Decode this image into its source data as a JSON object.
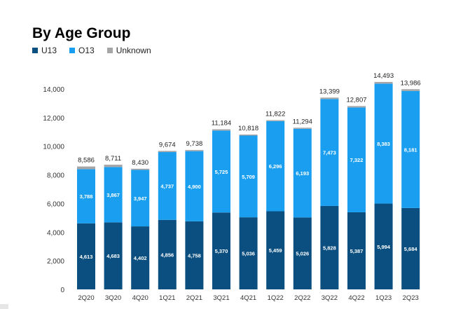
{
  "chart_data": {
    "type": "bar",
    "stacked": true,
    "title": "By Age Group",
    "categories": [
      "2Q20",
      "3Q20",
      "4Q20",
      "1Q21",
      "2Q21",
      "3Q21",
      "4Q21",
      "1Q22",
      "2Q22",
      "3Q22",
      "4Q22",
      "1Q23",
      "2Q23"
    ],
    "series": [
      {
        "name": "U13",
        "color": "#0b4f80",
        "values": [
          4613,
          4683,
          4402,
          4856,
          4758,
          5370,
          5036,
          5459,
          5026,
          5828,
          5387,
          5994,
          5684
        ]
      },
      {
        "name": "O13",
        "color": "#1a9ff0",
        "values": [
          3788,
          3867,
          3947,
          4737,
          4900,
          5725,
          5709,
          6296,
          6193,
          7473,
          7322,
          8383,
          8181
        ]
      },
      {
        "name": "Unknown",
        "color": "#a6a6a6",
        "values": [
          185,
          161,
          81,
          81,
          80,
          89,
          73,
          67,
          75,
          98,
          98,
          116,
          121
        ]
      }
    ],
    "totals": [
      "8,586",
      "8,711",
      "8,430",
      "9,674",
      "9,738",
      "11,184",
      "10,818",
      "11,822",
      "11,294",
      "13,399",
      "12,807",
      "14,493",
      "13,986"
    ],
    "segment_labels": {
      "U13": [
        "4,613",
        "4,683",
        "4,402",
        "4,856",
        "4,758",
        "5,370",
        "5,036",
        "5,459",
        "5,026",
        "5,828",
        "5,387",
        "5,994",
        "5,684"
      ],
      "O13": [
        "3,788",
        "3,867",
        "3,947",
        "4,737",
        "4,900",
        "5,725",
        "5,709",
        "6,296",
        "6,193",
        "7,473",
        "7,322",
        "8,383",
        "8,181"
      ]
    },
    "y_ticks": [
      "0",
      "2,000",
      "4,000",
      "6,000",
      "8,000",
      "10,000",
      "12,000",
      "14,000"
    ],
    "ylim": [
      0,
      14000
    ],
    "legend_position": "top-left",
    "grid": false
  }
}
